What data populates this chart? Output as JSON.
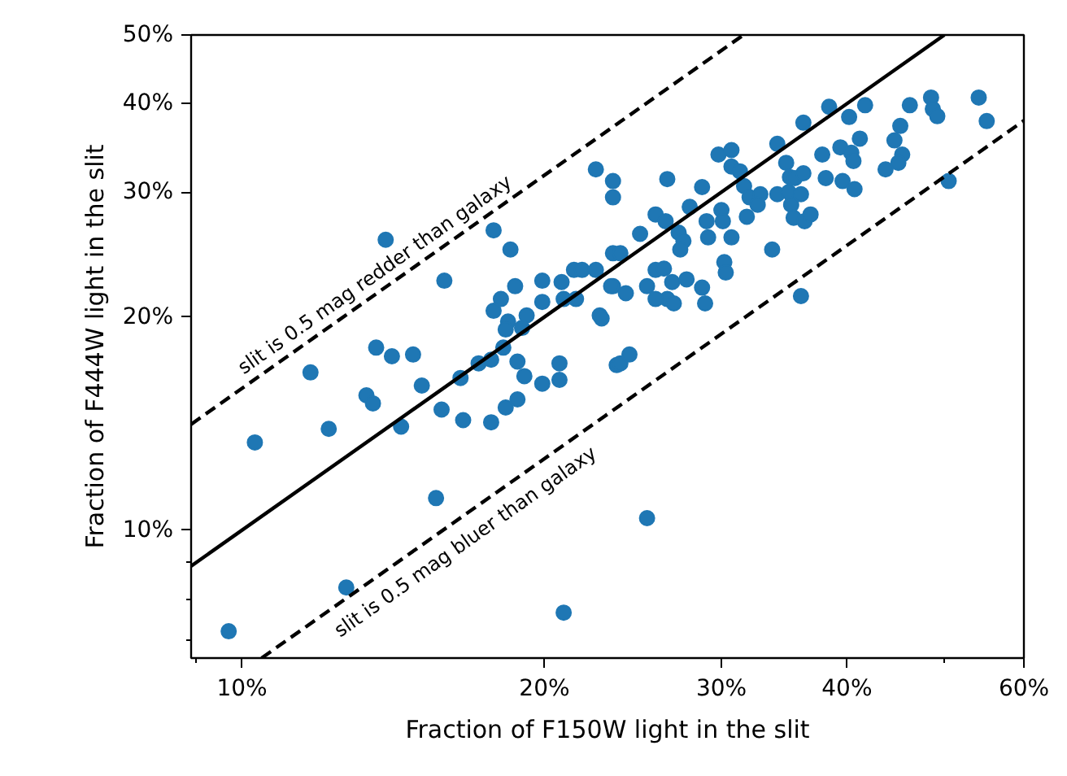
{
  "chart_data": {
    "type": "scatter",
    "xlabel": "Fraction of F150W light in the slit",
    "ylabel": "Fraction of F444W light in the slit",
    "log": "xy",
    "xlim": [
      0.089,
      0.6
    ],
    "ylim": [
      0.066,
      0.5
    ],
    "xticks": [
      {
        "value": 0.09,
        "label": null
      },
      {
        "value": 0.1,
        "label": "10%"
      },
      {
        "value": 0.2,
        "label": "20%"
      },
      {
        "value": 0.3,
        "label": "30%"
      },
      {
        "value": 0.4,
        "label": "40%"
      },
      {
        "value": 0.5,
        "label": null
      },
      {
        "value": 0.6,
        "label": "60%"
      }
    ],
    "yticks": [
      {
        "value": 0.07,
        "label": null
      },
      {
        "value": 0.08,
        "label": null
      },
      {
        "value": 0.09,
        "label": null
      },
      {
        "value": 0.1,
        "label": "10%"
      },
      {
        "value": 0.2,
        "label": "20%"
      },
      {
        "value": 0.3,
        "label": "30%"
      },
      {
        "value": 0.4,
        "label": "40%"
      },
      {
        "value": 0.5,
        "label": "50%"
      }
    ],
    "annotations": [
      {
        "text": "slit is 0.5 mag redder than galaxy",
        "x": 0.1,
        "y": 0.1585
      },
      {
        "text": "slit is 0.5 mag bluer than galaxy",
        "x": 0.121,
        "y": 0.0763
      }
    ],
    "series": [
      {
        "color": "#1f77b4",
        "marker": "circle",
        "x": [
          0.097,
          0.103,
          0.117,
          0.122,
          0.127,
          0.133,
          0.135,
          0.136,
          0.141,
          0.144,
          0.148,
          0.151,
          0.156,
          0.158,
          0.165,
          0.166,
          0.172,
          0.177,
          0.177,
          0.182,
          0.183,
          0.188,
          0.188,
          0.191,
          0.199,
          0.207,
          0.207,
          0.209,
          0.236,
          0.139,
          0.159,
          0.178,
          0.185,
          0.225,
          0.234,
          0.234,
          0.178,
          0.181,
          0.184,
          0.187,
          0.192,
          0.199,
          0.199,
          0.208,
          0.209,
          0.214,
          0.218,
          0.225,
          0.215,
          0.227,
          0.234,
          0.234,
          0.233,
          0.241,
          0.228,
          0.238,
          0.253,
          0.258,
          0.263,
          0.268,
          0.265,
          0.258,
          0.269,
          0.277,
          0.287,
          0.289,
          0.249,
          0.265,
          0.279,
          0.287,
          0.258,
          0.264,
          0.272,
          0.275,
          0.273,
          0.29,
          0.291,
          0.3,
          0.301,
          0.307,
          0.302,
          0.303,
          0.298,
          0.307,
          0.307,
          0.313,
          0.316,
          0.32,
          0.328,
          0.326,
          0.318,
          0.341,
          0.341,
          0.348,
          0.351,
          0.35,
          0.355,
          0.352,
          0.362,
          0.36,
          0.354,
          0.363,
          0.368,
          0.337,
          0.36,
          0.362,
          0.384,
          0.402,
          0.417,
          0.378,
          0.381,
          0.394,
          0.396,
          0.404,
          0.406,
          0.412,
          0.407,
          0.462,
          0.485,
          0.487,
          0.492,
          0.541,
          0.551,
          0.452,
          0.446,
          0.454,
          0.45,
          0.437,
          0.505,
          0.238,
          0.243,
          0.253,
          0.19,
          0.183
        ],
        "values": [
          0.072,
          0.133,
          0.167,
          0.139,
          0.083,
          0.155,
          0.151,
          0.181,
          0.176,
          0.14,
          0.177,
          0.16,
          0.111,
          0.148,
          0.164,
          0.143,
          0.172,
          0.174,
          0.142,
          0.181,
          0.149,
          0.173,
          0.153,
          0.165,
          0.161,
          0.172,
          0.163,
          0.0765,
          0.171,
          0.257,
          0.225,
          0.265,
          0.249,
          0.323,
          0.311,
          0.295,
          0.204,
          0.212,
          0.197,
          0.221,
          0.201,
          0.225,
          0.21,
          0.224,
          0.212,
          0.233,
          0.233,
          0.233,
          0.212,
          0.201,
          0.246,
          0.221,
          0.221,
          0.216,
          0.199,
          0.246,
          0.221,
          0.233,
          0.234,
          0.224,
          0.212,
          0.212,
          0.209,
          0.226,
          0.22,
          0.209,
          0.262,
          0.313,
          0.286,
          0.305,
          0.279,
          0.273,
          0.263,
          0.256,
          0.249,
          0.273,
          0.259,
          0.283,
          0.273,
          0.259,
          0.239,
          0.231,
          0.339,
          0.344,
          0.326,
          0.321,
          0.306,
          0.295,
          0.298,
          0.288,
          0.277,
          0.298,
          0.351,
          0.33,
          0.315,
          0.3,
          0.314,
          0.288,
          0.319,
          0.298,
          0.276,
          0.273,
          0.279,
          0.249,
          0.214,
          0.376,
          0.396,
          0.383,
          0.398,
          0.339,
          0.314,
          0.347,
          0.311,
          0.341,
          0.332,
          0.357,
          0.303,
          0.398,
          0.408,
          0.393,
          0.384,
          0.408,
          0.378,
          0.372,
          0.355,
          0.339,
          0.33,
          0.323,
          0.311,
          0.172,
          0.177,
          0.104,
          0.193,
          0.192
        ]
      },
      {
        "type": "line",
        "color": "#000000",
        "line_style": "solid",
        "x": [
          0.089,
          0.5
        ],
        "values": [
          0.089,
          0.5
        ]
      },
      {
        "type": "line",
        "color": "#000000",
        "line_style": "dashed",
        "x": [
          0.089,
          0.3155
        ],
        "values": [
          0.1411,
          0.5
        ]
      },
      {
        "type": "line",
        "color": "#000000",
        "line_style": "dashed",
        "x": [
          0.1046,
          0.6
        ],
        "values": [
          0.066,
          0.3785
        ]
      }
    ]
  }
}
